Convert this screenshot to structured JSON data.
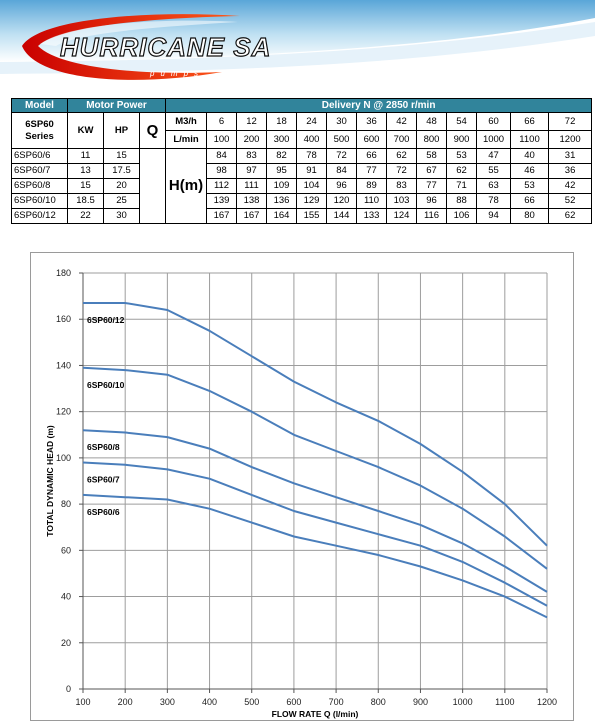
{
  "brand": {
    "name": "HURRICANE SA",
    "tagline": "pumps"
  },
  "table": {
    "hdr_model": "Model",
    "hdr_motor": "Motor Power",
    "hdr_delivery": "Delivery N @ 2850 r/min",
    "series_line1": "6SP60",
    "series_line2": "Series",
    "kw": "KW",
    "hp": "HP",
    "q": "Q",
    "m3h_label": "M3/h",
    "lmin_label": "L/min",
    "hm": "H(m)",
    "m3h": [
      "6",
      "12",
      "18",
      "24",
      "30",
      "36",
      "42",
      "48",
      "54",
      "60",
      "66",
      "72"
    ],
    "lmin": [
      "100",
      "200",
      "300",
      "400",
      "500",
      "600",
      "700",
      "800",
      "900",
      "1000",
      "1100",
      "1200"
    ],
    "rows": [
      {
        "model": "6SP60/6",
        "kw": "11",
        "hp": "15",
        "h": [
          "84",
          "83",
          "82",
          "78",
          "72",
          "66",
          "62",
          "58",
          "53",
          "47",
          "40",
          "31"
        ]
      },
      {
        "model": "6SP60/7",
        "kw": "13",
        "hp": "17.5",
        "h": [
          "98",
          "97",
          "95",
          "91",
          "84",
          "77",
          "72",
          "67",
          "62",
          "55",
          "46",
          "36"
        ]
      },
      {
        "model": "6SP60/8",
        "kw": "15",
        "hp": "20",
        "h": [
          "112",
          "111",
          "109",
          "104",
          "96",
          "89",
          "83",
          "77",
          "71",
          "63",
          "53",
          "42"
        ]
      },
      {
        "model": "6SP60/10",
        "kw": "18.5",
        "hp": "25",
        "h": [
          "139",
          "138",
          "136",
          "129",
          "120",
          "110",
          "103",
          "96",
          "88",
          "78",
          "66",
          "52"
        ]
      },
      {
        "model": "6SP60/12",
        "kw": "22",
        "hp": "30",
        "h": [
          "167",
          "167",
          "164",
          "155",
          "144",
          "133",
          "124",
          "116",
          "106",
          "94",
          "80",
          "62"
        ]
      }
    ]
  },
  "chart_data": {
    "type": "line",
    "xlabel": "FLOW RATE Q (l/min)",
    "ylabel": "TOTAL DYNAMIC HEAD (m)",
    "x": [
      100,
      200,
      300,
      400,
      500,
      600,
      700,
      800,
      900,
      1000,
      1100,
      1200
    ],
    "xlim": [
      100,
      1200
    ],
    "ylim": [
      0,
      180
    ],
    "yticks": [
      0,
      20,
      40,
      60,
      80,
      100,
      120,
      140,
      160,
      180
    ],
    "grid": true,
    "series": [
      {
        "name": "6SP60/12",
        "values": [
          167,
          167,
          164,
          155,
          144,
          133,
          124,
          116,
          106,
          94,
          80,
          62
        ]
      },
      {
        "name": "6SP60/10",
        "values": [
          139,
          138,
          136,
          129,
          120,
          110,
          103,
          96,
          88,
          78,
          66,
          52
        ]
      },
      {
        "name": "6SP60/8",
        "values": [
          112,
          111,
          109,
          104,
          96,
          89,
          83,
          77,
          71,
          63,
          53,
          42
        ]
      },
      {
        "name": "6SP60/7",
        "values": [
          98,
          97,
          95,
          91,
          84,
          77,
          72,
          67,
          62,
          55,
          46,
          36
        ]
      },
      {
        "name": "6SP60/6",
        "values": [
          84,
          83,
          82,
          78,
          72,
          66,
          62,
          58,
          53,
          47,
          40,
          31
        ]
      }
    ],
    "line_color": "#4a7ebb"
  }
}
